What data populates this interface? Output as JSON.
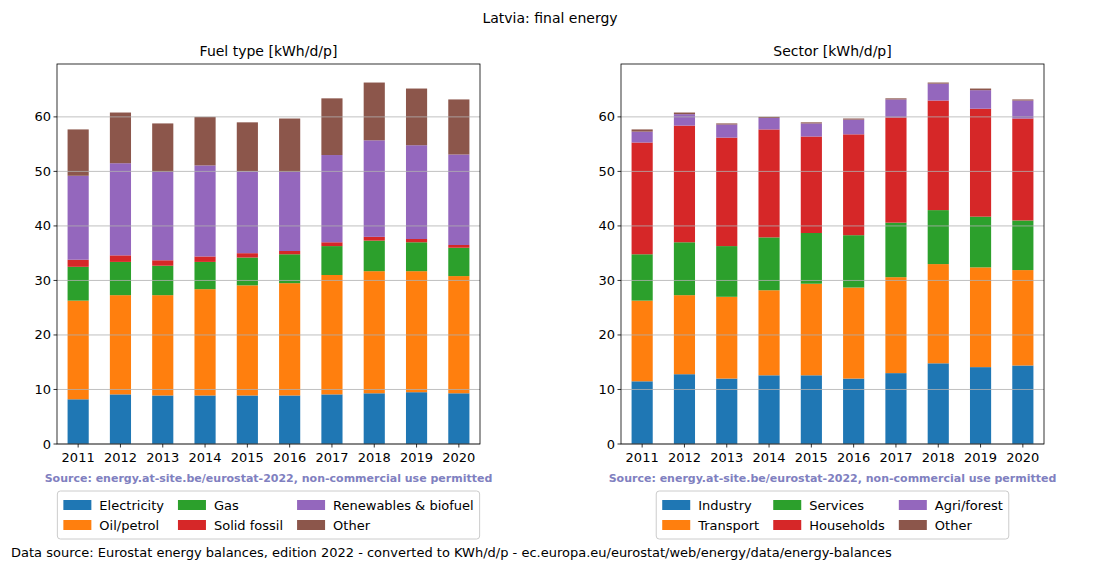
{
  "suptitle": "Latvia: final energy",
  "footer": "Data source: Eurostat energy balances, edition 2022 - converted to KWh/d/p - ec.europa.eu/eurostat/web/energy/data/energy-balances",
  "chart_data": [
    {
      "type": "bar",
      "title": "Fuel type [kWh/d/p]",
      "stacked": true,
      "grid": true,
      "legend": "bottom",
      "annotation": "Source: energy.at-site.be/eurostat-2022, non-commercial use permitted",
      "categories": [
        "2011",
        "2012",
        "2013",
        "2014",
        "2015",
        "2016",
        "2017",
        "2018",
        "2019",
        "2020"
      ],
      "ylim": [
        0,
        69.7
      ],
      "yticks": [
        0,
        10,
        20,
        30,
        40,
        50,
        60
      ],
      "series": [
        {
          "name": "Electricity",
          "color": "#1f77b4",
          "values": [
            8.2,
            9.1,
            8.9,
            8.9,
            8.9,
            8.9,
            9.1,
            9.3,
            9.5,
            9.3
          ]
        },
        {
          "name": "Oil/petrol",
          "color": "#ff7f0e",
          "values": [
            18.1,
            18.2,
            18.4,
            19.5,
            20.2,
            20.6,
            21.9,
            22.4,
            22.2,
            21.5
          ]
        },
        {
          "name": "Gas",
          "color": "#2ca02c",
          "values": [
            6.2,
            6.1,
            5.4,
            5.0,
            5.1,
            5.3,
            5.3,
            5.6,
            5.3,
            5.2
          ]
        },
        {
          "name": "Solid fossil",
          "color": "#d62728",
          "values": [
            1.3,
            1.2,
            1.0,
            1.0,
            0.8,
            0.6,
            0.7,
            0.7,
            0.6,
            0.5
          ]
        },
        {
          "name": "Renewables & biofuel",
          "color": "#9467bd",
          "values": [
            15.4,
            16.9,
            16.2,
            16.7,
            15.0,
            14.5,
            16.0,
            17.7,
            17.2,
            16.6
          ]
        },
        {
          "name": "Other",
          "color": "#8c564b",
          "values": [
            8.5,
            9.3,
            8.9,
            8.9,
            9.0,
            9.8,
            10.4,
            10.6,
            10.4,
            10.1
          ]
        }
      ]
    },
    {
      "type": "bar",
      "title": "Sector [kWh/d/p]",
      "stacked": true,
      "grid": true,
      "legend": "bottom",
      "annotation": "Source: energy.at-site.be/eurostat-2022, non-commercial use permitted",
      "categories": [
        "2011",
        "2012",
        "2013",
        "2014",
        "2015",
        "2016",
        "2017",
        "2018",
        "2019",
        "2020"
      ],
      "ylim": [
        0,
        69.7
      ],
      "yticks": [
        0,
        10,
        20,
        30,
        40,
        50,
        60
      ],
      "series": [
        {
          "name": "Industry",
          "color": "#1f77b4",
          "values": [
            11.5,
            12.8,
            12.0,
            12.6,
            12.6,
            12.0,
            13.0,
            14.8,
            14.1,
            14.4
          ]
        },
        {
          "name": "Transport",
          "color": "#ff7f0e",
          "values": [
            14.8,
            14.5,
            15.0,
            15.6,
            16.8,
            16.7,
            17.6,
            18.2,
            18.3,
            17.5
          ]
        },
        {
          "name": "Services",
          "color": "#2ca02c",
          "values": [
            8.5,
            9.7,
            9.3,
            9.7,
            9.3,
            9.6,
            10.0,
            9.9,
            9.3,
            9.1
          ]
        },
        {
          "name": "Households",
          "color": "#d62728",
          "values": [
            20.5,
            21.4,
            19.9,
            19.8,
            17.7,
            18.5,
            19.3,
            20.1,
            19.8,
            18.7
          ]
        },
        {
          "name": "Agri/forest",
          "color": "#9467bd",
          "values": [
            2.0,
            2.1,
            2.4,
            2.1,
            2.4,
            2.7,
            3.3,
            3.1,
            3.4,
            3.3
          ]
        },
        {
          "name": "Other",
          "color": "#8c564b",
          "values": [
            0.4,
            0.3,
            0.2,
            0.2,
            0.2,
            0.2,
            0.2,
            0.2,
            0.3,
            0.2
          ]
        }
      ]
    }
  ]
}
